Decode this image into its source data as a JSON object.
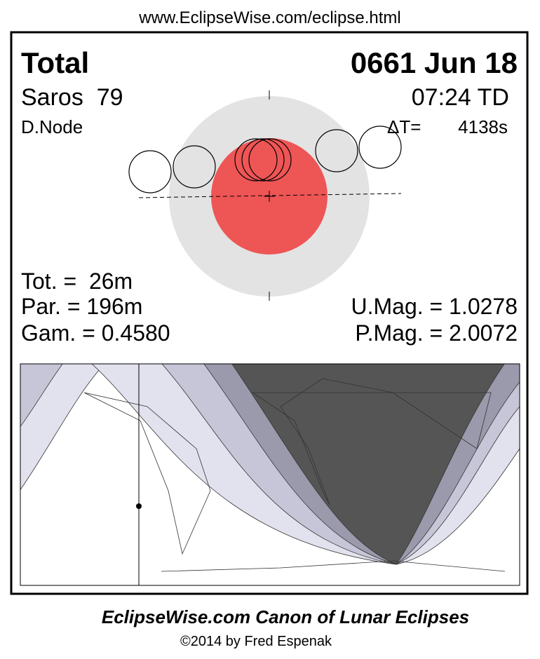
{
  "header": {
    "url": "www.EclipseWise.com/eclipse.html"
  },
  "panel": {
    "type": "Total",
    "date": "0661 Jun 18",
    "saros": "Saros  79",
    "time": "07:24 TD",
    "node": "D.Node",
    "delta_t_label": "ΔT=",
    "delta_t_value": "4138s",
    "tot": "Tot. =  26m",
    "par": "Par. = 196m",
    "gam": "Gam. = 0.4580",
    "umag": "U.Mag. = 1.0278",
    "pmag": "P.Mag. = 2.0072"
  },
  "footer": {
    "title": "EclipseWise.com Canon of Lunar Eclipses",
    "copyright": "©2014 by Fred Espenak"
  }
}
